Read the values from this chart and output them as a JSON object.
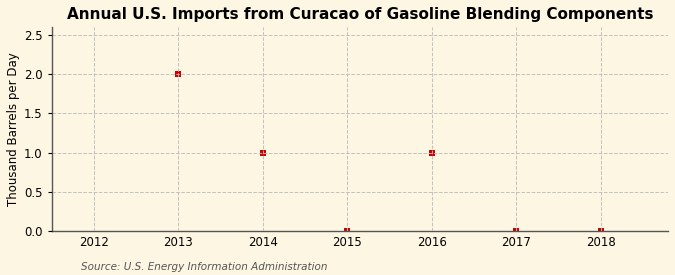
{
  "title": "Annual U.S. Imports from Curacao of Gasoline Blending Components",
  "ylabel": "Thousand Barrels per Day",
  "source": "Source: U.S. Energy Information Administration",
  "x_data": [
    2013,
    2014,
    2015,
    2016,
    2017,
    2018
  ],
  "y_data": [
    2.0,
    1.0,
    0.0,
    1.0,
    0.0,
    0.0
  ],
  "xlim": [
    2011.5,
    2018.8
  ],
  "ylim": [
    0.0,
    2.6
  ],
  "yticks": [
    0.0,
    0.5,
    1.0,
    1.5,
    2.0,
    2.5
  ],
  "xticks": [
    2012,
    2013,
    2014,
    2015,
    2016,
    2017,
    2018
  ],
  "marker_color": "#cc0000",
  "marker_style": "s",
  "marker_size": 4,
  "background_color": "#fdf6e3",
  "plot_bg_color": "#fdf6e3",
  "grid_color": "#bbbbbb",
  "grid_style": "--",
  "grid_alpha": 0.9,
  "title_fontsize": 11,
  "ylabel_fontsize": 8.5,
  "source_fontsize": 7.5,
  "tick_fontsize": 8.5
}
